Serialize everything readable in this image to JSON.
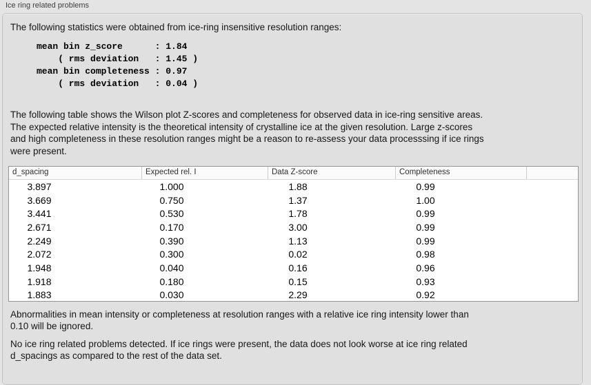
{
  "panel": {
    "title": "Ice ring related problems",
    "intro": "The following statistics were obtained from ice-ring insensitive resolution ranges:",
    "stats_block": "mean bin z_score      : 1.84\n    ( rms deviation   : 1.45 )\nmean bin completeness : 0.97\n    ( rms deviation   : 0.04 )",
    "stats": {
      "mean_bin_z_score": "1.84",
      "z_score_rms_deviation": "1.45",
      "mean_bin_completeness": "0.97",
      "completeness_rms_deviation": "0.04"
    },
    "table_description": "The following table shows the Wilson plot Z-scores and completeness for observed data in ice-ring sensitive areas.\nThe expected relative intensity is the theoretical intensity of crystalline ice at the given resolution. Large z-scores\nand high completeness in these resolution ranges might be a reason to re-assess your data processsing if ice rings\nwere present.",
    "table": {
      "columns": [
        "d_spacing",
        "Expected rel. I",
        "Data Z-score",
        "Completeness"
      ],
      "rows": [
        [
          "3.897",
          "1.000",
          "1.88",
          "0.99"
        ],
        [
          "3.669",
          "0.750",
          "1.37",
          "1.00"
        ],
        [
          "3.441",
          "0.530",
          "1.78",
          "0.99"
        ],
        [
          "2.671",
          "0.170",
          "3.00",
          "0.99"
        ],
        [
          "2.249",
          "0.390",
          "1.13",
          "0.99"
        ],
        [
          "2.072",
          "0.300",
          "0.02",
          "0.98"
        ],
        [
          "1.948",
          "0.040",
          "0.16",
          "0.96"
        ],
        [
          "1.918",
          "0.180",
          "0.15",
          "0.93"
        ],
        [
          "1.883",
          "0.030",
          "2.29",
          "0.92"
        ]
      ]
    },
    "abnormalities_note": "Abnormalities in mean intensity or completeness at resolution ranges with a relative ice ring intensity lower than\n0.10 will be ignored.",
    "conclusion": "No ice ring related problems detected. If ice rings were present, the data does not look worse at ice ring related\nd_spacings as compared to the rest of the data set."
  }
}
